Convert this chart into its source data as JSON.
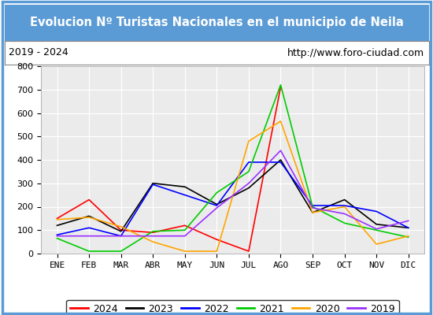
{
  "title": "Evolucion Nº Turistas Nacionales en el municipio de Neila",
  "subtitle_left": "2019 - 2024",
  "subtitle_right": "http://www.foro-ciudad.com",
  "title_bg_color": "#5b9bd5",
  "title_text_color": "#ffffff",
  "months": [
    "ENE",
    "FEB",
    "MAR",
    "ABR",
    "MAY",
    "JUN",
    "JUL",
    "AGO",
    "SEP",
    "OCT",
    "NOV",
    "DIC"
  ],
  "ylim": [
    0,
    800
  ],
  "yticks": [
    0,
    100,
    200,
    300,
    400,
    500,
    600,
    700,
    800
  ],
  "series": {
    "2024": {
      "color": "#ff0000",
      "data": [
        150,
        230,
        100,
        90,
        120,
        60,
        10,
        710,
        null,
        null,
        null,
        null
      ]
    },
    "2023": {
      "color": "#000000",
      "data": [
        120,
        160,
        95,
        300,
        285,
        210,
        280,
        400,
        175,
        230,
        125,
        110
      ]
    },
    "2022": {
      "color": "#0000ff",
      "data": [
        80,
        110,
        75,
        295,
        250,
        205,
        390,
        390,
        205,
        205,
        180,
        110
      ]
    },
    "2021": {
      "color": "#00cc00",
      "data": [
        65,
        10,
        10,
        95,
        100,
        260,
        350,
        720,
        200,
        130,
        100,
        70
      ]
    },
    "2020": {
      "color": "#ffa500",
      "data": [
        145,
        155,
        115,
        50,
        10,
        10,
        480,
        565,
        175,
        200,
        40,
        75
      ]
    },
    "2019": {
      "color": "#9b30ff",
      "data": [
        75,
        75,
        75,
        75,
        75,
        195,
        300,
        440,
        195,
        170,
        105,
        140
      ]
    }
  },
  "legend_order": [
    "2024",
    "2023",
    "2022",
    "2021",
    "2020",
    "2019"
  ],
  "plot_bg_color": "#ebebeb",
  "border_color": "#5b9bd5",
  "grid_color": "#ffffff"
}
